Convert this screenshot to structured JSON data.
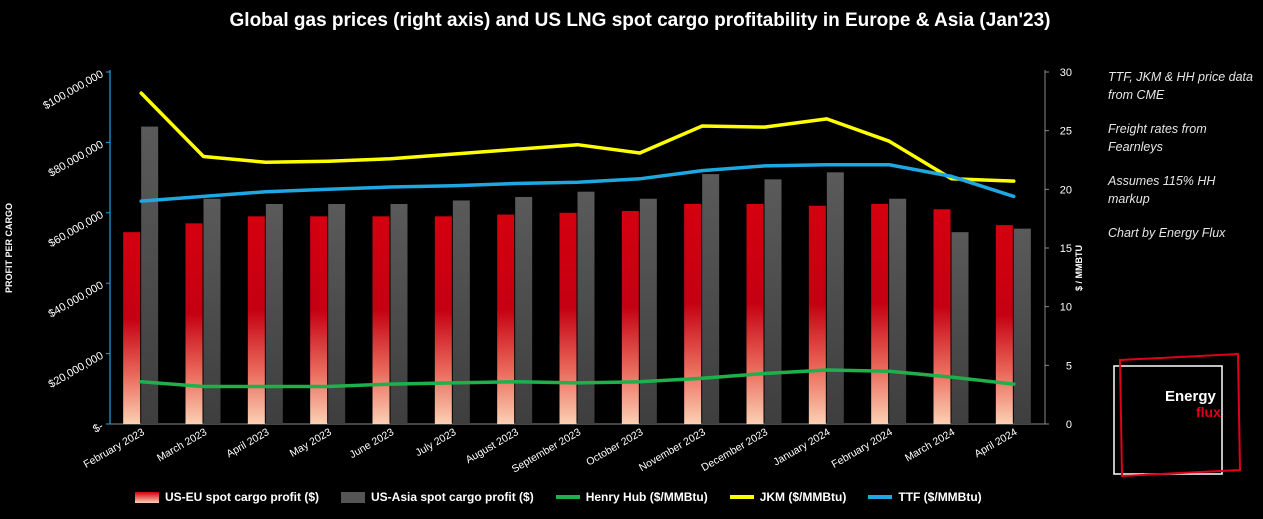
{
  "title": "Global gas prices (right axis) and US LNG spot cargo profitability in Europe & Asia (Jan'23)",
  "notes": [
    "TTF, JKM & HH price data from CME",
    "Freight rates from Fearnleys",
    "Assumes 115% HH markup",
    "Chart by Energy Flux"
  ],
  "logo": {
    "line1": "Energy",
    "line2": "flux",
    "accent_color": "#e0001b"
  },
  "legend": [
    {
      "label": "US-EU spot cargo profit ($)",
      "kind": "bar",
      "color": "#e0001b"
    },
    {
      "label": "US-Asia spot cargo profit ($)",
      "kind": "bar",
      "color": "#555555"
    },
    {
      "label": "Henry Hub ($/MMBtu)",
      "kind": "line",
      "color": "#1eb04a"
    },
    {
      "label": "JKM ($/MMBtu)",
      "kind": "line",
      "color": "#ffff00"
    },
    {
      "label": "TTF ($/MMBtu)",
      "kind": "line",
      "color": "#1ea7e1"
    }
  ],
  "chart_data": {
    "type": "bar",
    "title": "Global gas prices (right axis) and US LNG spot cargo profitability in Europe & Asia (Jan'23)",
    "categories": [
      "February 2023",
      "March 2023",
      "April 2023",
      "May 2023",
      "June 2023",
      "July 2023",
      "August 2023",
      "September 2023",
      "October 2023",
      "November 2023",
      "December 2023",
      "January 2024",
      "February 2024",
      "March 2024",
      "April 2024"
    ],
    "ylabel": "PROFIT PER CARGO",
    "y2label": "$ / MMBTU",
    "ylim": [
      0,
      100000000
    ],
    "y2lim": [
      0,
      30
    ],
    "yticks": [
      "$-",
      "$20,000,000",
      "$40,000,000",
      "$60,000,000",
      "$80,000,000",
      "$100,000,000"
    ],
    "y2ticks": [
      "0",
      "5",
      "10",
      "15",
      "20",
      "25",
      "30"
    ],
    "series": [
      {
        "name": "US-EU spot cargo profit ($)",
        "type": "bar",
        "axis": "left",
        "color": "#e0001b",
        "values": [
          54500000,
          57000000,
          59000000,
          59000000,
          59000000,
          59000000,
          59500000,
          60000000,
          60500000,
          62500000,
          62500000,
          62000000,
          62500000,
          61000000,
          56500000
        ]
      },
      {
        "name": "US-Asia spot cargo profit ($)",
        "type": "bar",
        "axis": "left",
        "color": "#555555",
        "values": [
          84500000,
          64000000,
          62500000,
          62500000,
          62500000,
          63500000,
          64500000,
          66000000,
          64000000,
          71000000,
          69500000,
          71500000,
          64000000,
          54500000,
          55500000
        ]
      },
      {
        "name": "Henry Hub ($/MMBtu)",
        "type": "line",
        "axis": "right",
        "color": "#1eb04a",
        "values": [
          3.6,
          3.2,
          3.2,
          3.2,
          3.4,
          3.5,
          3.6,
          3.5,
          3.6,
          3.9,
          4.3,
          4.6,
          4.5,
          4.0,
          3.4
        ]
      },
      {
        "name": "JKM ($/MMBtu)",
        "type": "line",
        "axis": "right",
        "color": "#ffff00",
        "values": [
          28.2,
          22.8,
          22.3,
          22.4,
          22.6,
          23.0,
          23.4,
          23.8,
          23.1,
          25.4,
          25.3,
          26.0,
          24.1,
          20.9,
          20.7
        ]
      },
      {
        "name": "TTF ($/MMBtu)",
        "type": "line",
        "axis": "right",
        "color": "#1ea7e1",
        "values": [
          19.0,
          19.4,
          19.8,
          20.0,
          20.2,
          20.3,
          20.5,
          20.6,
          20.9,
          21.6,
          22.0,
          22.1,
          22.1,
          21.1,
          19.4
        ]
      }
    ]
  }
}
